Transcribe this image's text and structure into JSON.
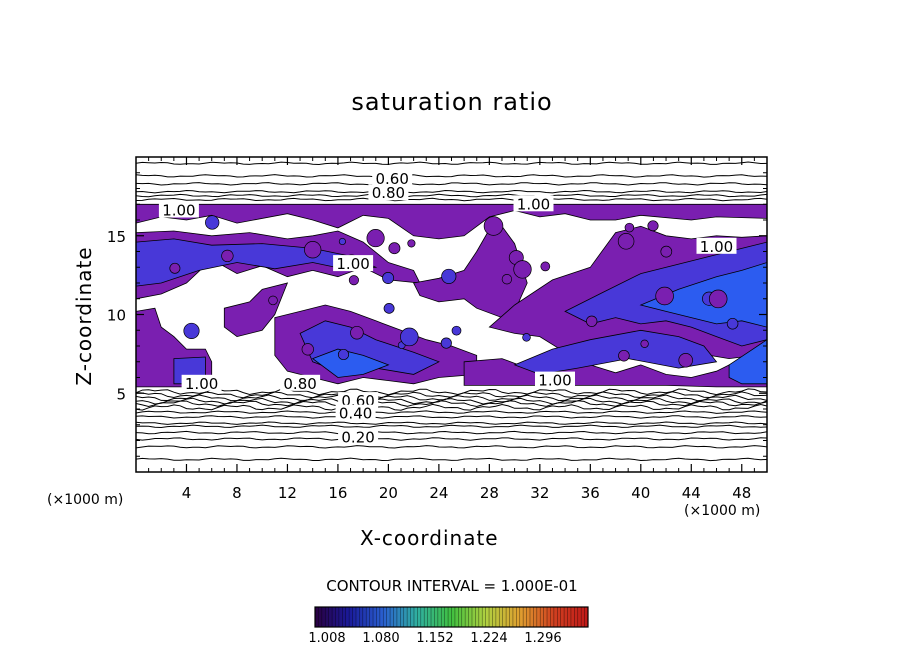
{
  "chart_data": {
    "type": "heatmap",
    "title": "saturation ratio",
    "xlabel": "X-coordinate",
    "ylabel": "Z-coordinate",
    "x_unit_left": "(×1000 m)",
    "x_unit_right": "(×1000 m)",
    "xlim": [
      0,
      50
    ],
    "ylim": [
      0,
      20
    ],
    "xticks": [
      4,
      8,
      12,
      16,
      20,
      24,
      28,
      32,
      36,
      40,
      44,
      48
    ],
    "yticks": [
      5,
      10,
      15
    ],
    "contour_interval_label": "CONTOUR INTERVAL = 1.000E-01",
    "colorbar": {
      "tick_labels": [
        "1.008",
        "1.080",
        "1.152",
        "1.224",
        "1.296"
      ],
      "range": [
        1.008,
        1.296
      ],
      "colors": [
        "#2a0040",
        "#1a1a9a",
        "#2a60d0",
        "#30b0a0",
        "#40c040",
        "#b0d040",
        "#e0a030",
        "#d04020",
        "#c01818"
      ]
    },
    "fill_colors": {
      "supersaturated_low": "#7a1fb0",
      "supersaturated_mid": "#4838d8",
      "supersaturated_high": "#2c5cf0"
    },
    "contour_labels": [
      {
        "text": "0.60",
        "x": 20.3,
        "y": 18.6
      },
      {
        "text": "0.80",
        "x": 20.0,
        "y": 17.7
      },
      {
        "text": "1.00",
        "x": 31.5,
        "y": 17.0
      },
      {
        "text": "1.00",
        "x": 3.4,
        "y": 16.6
      },
      {
        "text": "1.00",
        "x": 46.0,
        "y": 14.3
      },
      {
        "text": "1.00",
        "x": 17.2,
        "y": 13.2
      },
      {
        "text": "1.00",
        "x": 5.2,
        "y": 5.6
      },
      {
        "text": "1.00",
        "x": 33.2,
        "y": 5.8
      },
      {
        "text": "0.80",
        "x": 13.0,
        "y": 5.6
      },
      {
        "text": "0.60",
        "x": 17.6,
        "y": 4.5
      },
      {
        "text": "0.40",
        "x": 17.4,
        "y": 3.7
      },
      {
        "text": "0.20",
        "x": 17.6,
        "y": 2.2
      }
    ],
    "horizontal_contours_y": [
      19.6,
      18.8,
      18.3,
      17.8,
      17.55,
      17.3,
      5.1,
      4.9,
      4.7,
      4.5,
      4.35,
      4.1,
      3.8,
      3.5,
      3.1,
      2.9,
      2.5,
      2.1,
      1.6,
      0.8
    ]
  }
}
